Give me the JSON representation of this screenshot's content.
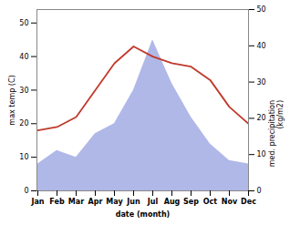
{
  "chart_data": {
    "type": "line",
    "xlabel": "date (month)",
    "ylabel": "max temp (C)",
    "y2label": "med. precipitation\n(kg/m2)",
    "categories": [
      "Jan",
      "Feb",
      "Mar",
      "Apr",
      "May",
      "Jun",
      "Jul",
      "Aug",
      "Sep",
      "Oct",
      "Nov",
      "Dec"
    ],
    "series": [
      {
        "type": "area",
        "color": "#b0b8e8",
        "values": [
          8,
          12,
          10,
          17,
          20,
          30,
          45,
          32,
          22,
          14,
          9,
          8
        ]
      },
      {
        "type": "line",
        "color": "#c0392b",
        "values": [
          18,
          19,
          22,
          30,
          38,
          43,
          40,
          38,
          37,
          33,
          25,
          20
        ]
      }
    ],
    "ylim": [
      0,
      54
    ],
    "yticks": [
      0,
      10,
      20,
      30,
      40,
      50
    ],
    "y2lim": [
      0,
      50
    ],
    "y2ticks": [
      0,
      10,
      20,
      30,
      40,
      50
    ]
  }
}
